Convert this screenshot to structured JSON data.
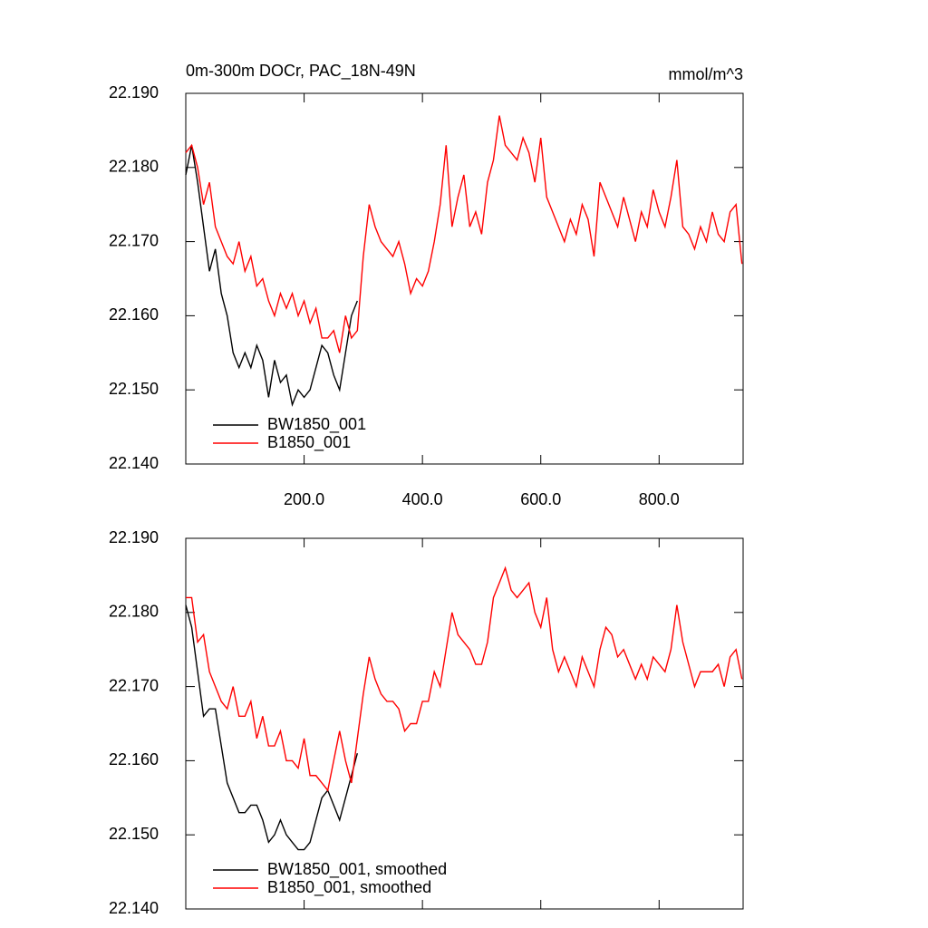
{
  "chart_data": [
    {
      "type": "line",
      "title": "0m-300m DOCr, PAC_18N-49N",
      "units": "mmol/m^3",
      "xlim": [
        0,
        942
      ],
      "ylim": [
        22.14,
        22.19
      ],
      "xticks": [
        {
          "value": 200,
          "label": "200.0"
        },
        {
          "value": 400,
          "label": "400.0"
        },
        {
          "value": 600,
          "label": "600.0"
        },
        {
          "value": 800,
          "label": "800.0"
        }
      ],
      "yticks": [
        {
          "value": 22.14,
          "label": "22.140"
        },
        {
          "value": 22.15,
          "label": "22.150"
        },
        {
          "value": 22.16,
          "label": "22.160"
        },
        {
          "value": 22.17,
          "label": "22.170"
        },
        {
          "value": 22.18,
          "label": "22.180"
        },
        {
          "value": 22.19,
          "label": "22.190"
        }
      ],
      "series": [
        {
          "name": "BW1850_001",
          "color": "#000000",
          "x": [
            0,
            10,
            20,
            30,
            40,
            50,
            60,
            70,
            80,
            90,
            100,
            110,
            120,
            130,
            140,
            150,
            160,
            170,
            180,
            190,
            200,
            210,
            220,
            230,
            240,
            250,
            260,
            270,
            280,
            290
          ],
          "values": [
            22.179,
            22.183,
            22.178,
            22.172,
            22.166,
            22.169,
            22.163,
            22.16,
            22.155,
            22.153,
            22.155,
            22.153,
            22.156,
            22.154,
            22.149,
            22.154,
            22.151,
            22.152,
            22.148,
            22.15,
            22.149,
            22.15,
            22.153,
            22.156,
            22.155,
            22.152,
            22.15,
            22.155,
            22.16,
            22.162
          ]
        },
        {
          "name": "B1850_001",
          "color": "#ff0000",
          "x": [
            0,
            10,
            20,
            30,
            40,
            50,
            60,
            70,
            80,
            90,
            100,
            110,
            120,
            130,
            140,
            150,
            160,
            170,
            180,
            190,
            200,
            210,
            220,
            230,
            240,
            250,
            260,
            270,
            280,
            290,
            300,
            310,
            320,
            330,
            340,
            350,
            360,
            370,
            380,
            390,
            400,
            410,
            420,
            430,
            440,
            450,
            460,
            470,
            480,
            490,
            500,
            510,
            520,
            530,
            540,
            550,
            560,
            570,
            580,
            590,
            600,
            610,
            620,
            630,
            640,
            650,
            660,
            670,
            680,
            690,
            700,
            710,
            720,
            730,
            740,
            750,
            760,
            770,
            780,
            790,
            800,
            810,
            820,
            830,
            840,
            850,
            860,
            870,
            880,
            890,
            900,
            910,
            920,
            930,
            940
          ],
          "values": [
            22.182,
            22.183,
            22.18,
            22.175,
            22.178,
            22.172,
            22.17,
            22.168,
            22.167,
            22.17,
            22.166,
            22.168,
            22.164,
            22.165,
            22.162,
            22.16,
            22.163,
            22.161,
            22.163,
            22.16,
            22.162,
            22.159,
            22.161,
            22.157,
            22.157,
            22.158,
            22.155,
            22.16,
            22.157,
            22.158,
            22.168,
            22.175,
            22.172,
            22.17,
            22.169,
            22.168,
            22.17,
            22.167,
            22.163,
            22.165,
            22.164,
            22.166,
            22.17,
            22.175,
            22.183,
            22.172,
            22.176,
            22.179,
            22.172,
            22.174,
            22.171,
            22.178,
            22.181,
            22.187,
            22.183,
            22.182,
            22.181,
            22.184,
            22.182,
            22.178,
            22.184,
            22.176,
            22.174,
            22.172,
            22.17,
            22.173,
            22.171,
            22.175,
            22.173,
            22.168,
            22.178,
            22.176,
            22.174,
            22.172,
            22.176,
            22.173,
            22.17,
            22.174,
            22.172,
            22.177,
            22.174,
            22.172,
            22.176,
            22.181,
            22.172,
            22.171,
            22.169,
            22.172,
            22.17,
            22.174,
            22.171,
            22.17,
            22.174,
            22.175,
            22.167
          ]
        }
      ]
    },
    {
      "type": "line",
      "xlim": [
        0,
        942
      ],
      "ylim": [
        22.14,
        22.19
      ],
      "xticks": [
        200,
        400,
        600,
        800
      ],
      "yticks": [
        {
          "value": 22.14,
          "label": "22.140"
        },
        {
          "value": 22.15,
          "label": "22.150"
        },
        {
          "value": 22.16,
          "label": "22.160"
        },
        {
          "value": 22.17,
          "label": "22.170"
        },
        {
          "value": 22.18,
          "label": "22.180"
        },
        {
          "value": 22.19,
          "label": "22.190"
        }
      ],
      "series": [
        {
          "name": "BW1850_001, smoothed",
          "color": "#000000",
          "x": [
            0,
            10,
            20,
            30,
            40,
            50,
            60,
            70,
            80,
            90,
            100,
            110,
            120,
            130,
            140,
            150,
            160,
            170,
            180,
            190,
            200,
            210,
            220,
            230,
            240,
            250,
            260,
            270,
            280,
            290
          ],
          "values": [
            22.181,
            22.178,
            22.172,
            22.166,
            22.167,
            22.167,
            22.162,
            22.157,
            22.155,
            22.153,
            22.153,
            22.154,
            22.154,
            22.152,
            22.149,
            22.15,
            22.152,
            22.15,
            22.149,
            22.148,
            22.148,
            22.149,
            22.152,
            22.155,
            22.156,
            22.154,
            22.152,
            22.155,
            22.158,
            22.161
          ]
        },
        {
          "name": "B1850_001, smoothed",
          "color": "#ff0000",
          "x": [
            0,
            10,
            20,
            30,
            40,
            50,
            60,
            70,
            80,
            90,
            100,
            110,
            120,
            130,
            140,
            150,
            160,
            170,
            180,
            190,
            200,
            210,
            220,
            230,
            240,
            250,
            260,
            270,
            280,
            290,
            300,
            310,
            320,
            330,
            340,
            350,
            360,
            370,
            380,
            390,
            400,
            410,
            420,
            430,
            440,
            450,
            460,
            470,
            480,
            490,
            500,
            510,
            520,
            530,
            540,
            550,
            560,
            570,
            580,
            590,
            600,
            610,
            620,
            630,
            640,
            650,
            660,
            670,
            680,
            690,
            700,
            710,
            720,
            730,
            740,
            750,
            760,
            770,
            780,
            790,
            800,
            810,
            820,
            830,
            840,
            850,
            860,
            870,
            880,
            890,
            900,
            910,
            920,
            930,
            940
          ],
          "values": [
            22.182,
            22.182,
            22.176,
            22.177,
            22.172,
            22.17,
            22.168,
            22.167,
            22.17,
            22.166,
            22.166,
            22.168,
            22.163,
            22.166,
            22.162,
            22.162,
            22.164,
            22.16,
            22.16,
            22.159,
            22.163,
            22.158,
            22.158,
            22.157,
            22.156,
            22.16,
            22.164,
            22.16,
            22.157,
            22.163,
            22.169,
            22.174,
            22.171,
            22.169,
            22.168,
            22.168,
            22.167,
            22.164,
            22.165,
            22.165,
            22.168,
            22.168,
            22.172,
            22.17,
            22.175,
            22.18,
            22.177,
            22.176,
            22.175,
            22.173,
            22.173,
            22.176,
            22.182,
            22.184,
            22.186,
            22.183,
            22.182,
            22.183,
            22.184,
            22.18,
            22.178,
            22.182,
            22.175,
            22.172,
            22.174,
            22.172,
            22.17,
            22.174,
            22.172,
            22.17,
            22.175,
            22.178,
            22.177,
            22.174,
            22.175,
            22.173,
            22.171,
            22.173,
            22.171,
            22.174,
            22.173,
            22.172,
            22.175,
            22.181,
            22.176,
            22.173,
            22.17,
            22.172,
            22.172,
            22.172,
            22.173,
            22.17,
            22.174,
            22.175,
            22.171
          ]
        }
      ]
    }
  ]
}
